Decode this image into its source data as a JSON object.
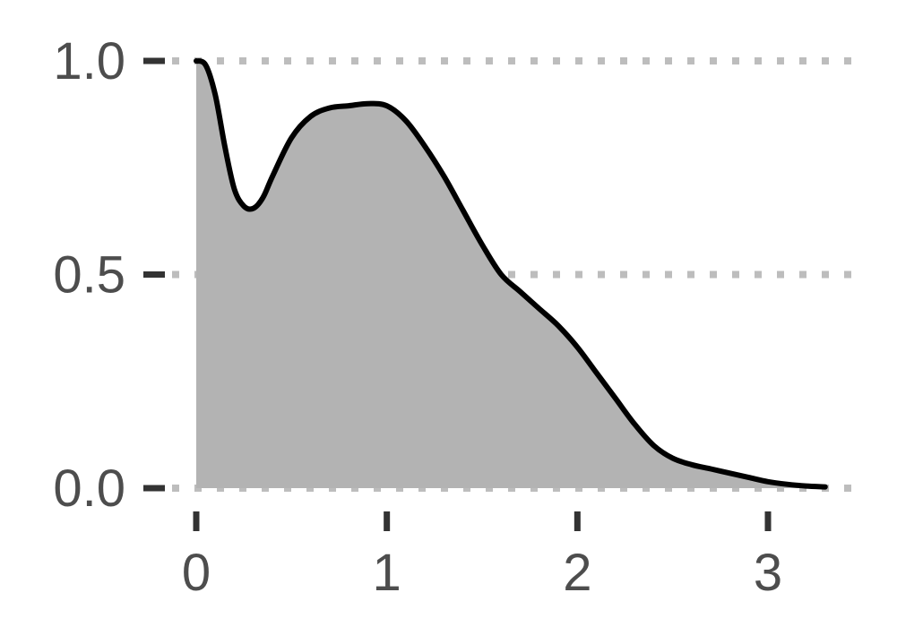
{
  "chart_data": {
    "type": "area",
    "title": "",
    "xlabel": "",
    "ylabel": "",
    "xlim": [
      0,
      3.3
    ],
    "ylim": [
      0,
      1.0
    ],
    "x_ticks": [
      {
        "value": 0,
        "label": "0"
      },
      {
        "value": 1,
        "label": "1"
      },
      {
        "value": 2,
        "label": "2"
      },
      {
        "value": 3,
        "label": "3"
      }
    ],
    "y_ticks": [
      {
        "value": 0.0,
        "label": "0.0"
      },
      {
        "value": 0.5,
        "label": "0.5"
      },
      {
        "value": 1.0,
        "label": "1.0"
      }
    ],
    "grid": {
      "horizontal": true,
      "vertical": false,
      "style": "dotted"
    },
    "series": [
      {
        "x": [
          0.0,
          0.05,
          0.1,
          0.15,
          0.2,
          0.25,
          0.3,
          0.35,
          0.4,
          0.5,
          0.6,
          0.7,
          0.8,
          0.9,
          1.0,
          1.1,
          1.2,
          1.3,
          1.4,
          1.5,
          1.6,
          1.7,
          1.8,
          1.9,
          2.0,
          2.1,
          2.2,
          2.3,
          2.4,
          2.5,
          2.6,
          2.7,
          2.8,
          2.9,
          3.0,
          3.1,
          3.2,
          3.3
        ],
        "y": [
          1.0,
          0.99,
          0.92,
          0.8,
          0.7,
          0.66,
          0.655,
          0.68,
          0.73,
          0.82,
          0.87,
          0.89,
          0.895,
          0.9,
          0.895,
          0.86,
          0.8,
          0.73,
          0.65,
          0.57,
          0.5,
          0.46,
          0.42,
          0.38,
          0.33,
          0.27,
          0.21,
          0.15,
          0.1,
          0.07,
          0.055,
          0.045,
          0.035,
          0.025,
          0.015,
          0.009,
          0.005,
          0.003
        ]
      }
    ]
  },
  "colors": {
    "area_fill": "#b3b3b3",
    "line": "#000000",
    "grid": "#bdbdbd",
    "tick": "#333333",
    "tick_label": "#4d4d4d"
  }
}
